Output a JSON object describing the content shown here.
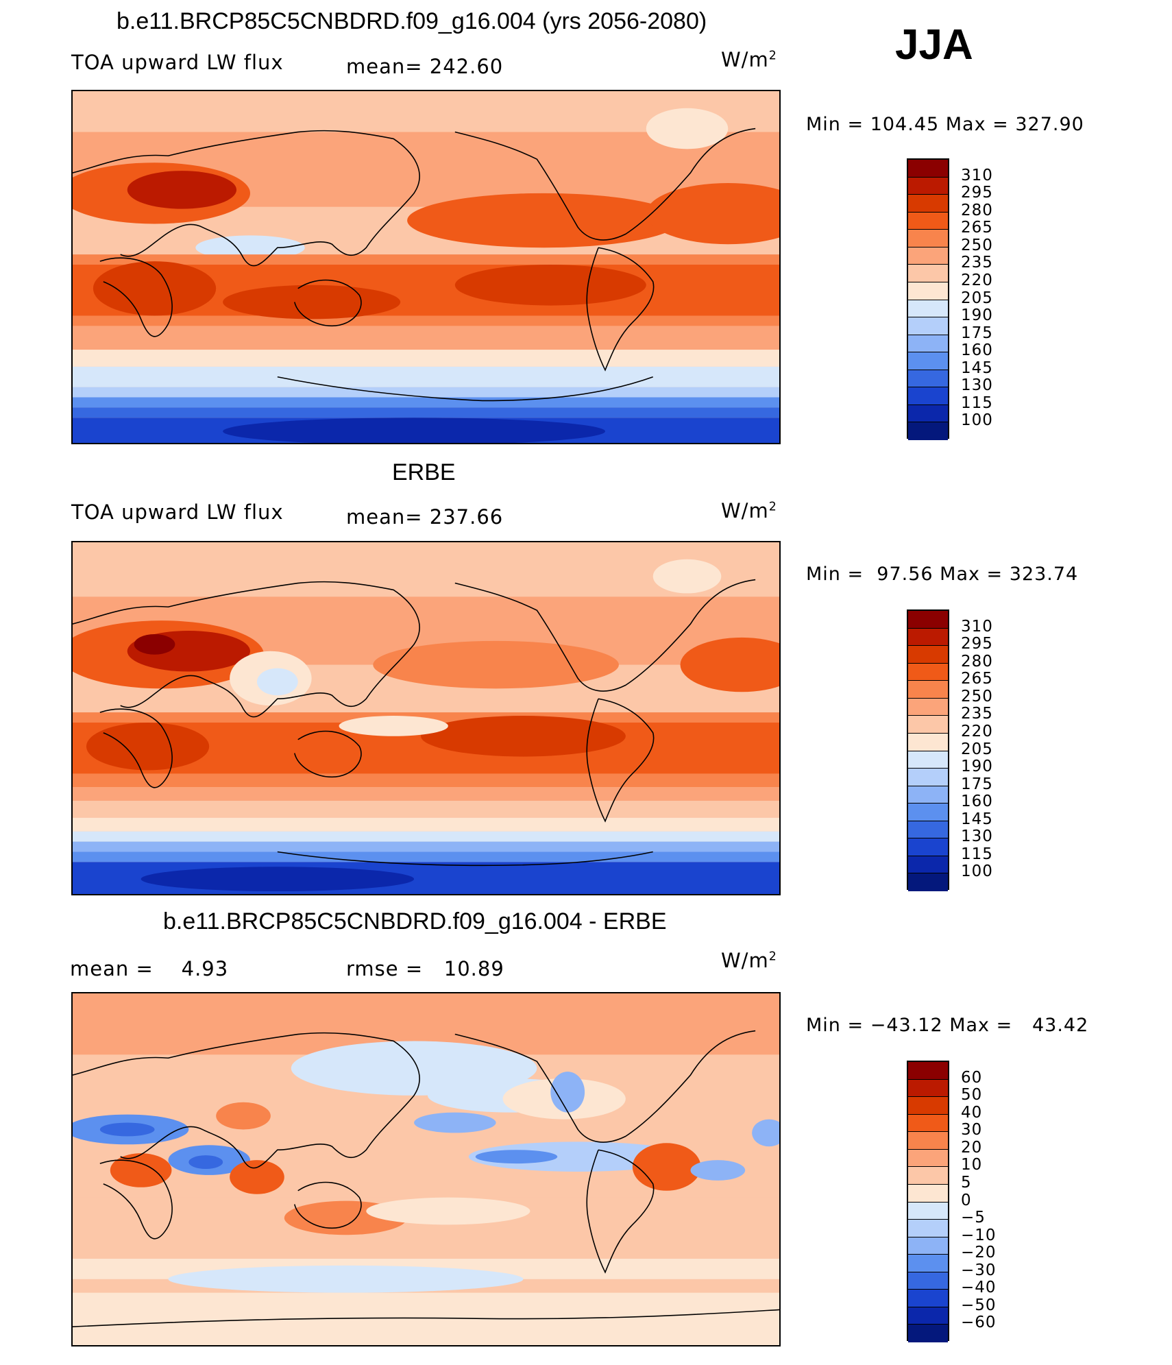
{
  "season": "JJA",
  "panels": [
    {
      "title": "b.e11.BRCP85C5CNBDRD.f09_g16.004 (yrs 2056-2080)",
      "left_label": "TOA upward LW flux",
      "center_label": "mean= 242.60",
      "units": "W/m",
      "units_sup": "2",
      "minmax": "Min = 104.45 Max = 327.90",
      "colorbar": {
        "labels": [
          "310",
          "295",
          "280",
          "265",
          "250",
          "235",
          "220",
          "205",
          "190",
          "175",
          "160",
          "145",
          "130",
          "115",
          "100"
        ],
        "colors": [
          "#8b0000",
          "#bb1a00",
          "#d83a00",
          "#f05a18",
          "#f8844c",
          "#fba47a",
          "#fcc7a8",
          "#fde6d2",
          "#d6e7fa",
          "#b4cffa",
          "#8db3f6",
          "#5c90ef",
          "#3668e0",
          "#1a44cf",
          "#0b27ab",
          "#04187c"
        ]
      }
    },
    {
      "title": "ERBE",
      "left_label": "TOA upward LW flux",
      "center_label": "mean= 237.66",
      "units": "W/m",
      "units_sup": "2",
      "minmax": "Min =  97.56 Max = 323.74",
      "colorbar": {
        "labels": [
          "310",
          "295",
          "280",
          "265",
          "250",
          "235",
          "220",
          "205",
          "190",
          "175",
          "160",
          "145",
          "130",
          "115",
          "100"
        ],
        "colors": [
          "#8b0000",
          "#bb1a00",
          "#d83a00",
          "#f05a18",
          "#f8844c",
          "#fba47a",
          "#fcc7a8",
          "#fde6d2",
          "#d6e7fa",
          "#b4cffa",
          "#8db3f6",
          "#5c90ef",
          "#3668e0",
          "#1a44cf",
          "#0b27ab",
          "#04187c"
        ]
      }
    },
    {
      "title": "b.e11.BRCP85C5CNBDRD.f09_g16.004 - ERBE",
      "left_label": "mean =    4.93",
      "center_label": "rmse =   10.89",
      "units": "W/m",
      "units_sup": "2",
      "minmax": "Min = −43.12 Max =   43.42",
      "colorbar": {
        "labels": [
          "60",
          "50",
          "40",
          "30",
          "20",
          "10",
          "5",
          "0",
          "−5",
          "−10",
          "−20",
          "−30",
          "−40",
          "−50",
          "−60"
        ],
        "colors": [
          "#8b0000",
          "#bb1a00",
          "#d83a00",
          "#f05a18",
          "#f8844c",
          "#fba47a",
          "#fcc7a8",
          "#fde6d2",
          "#d6e7fa",
          "#b4cffa",
          "#8db3f6",
          "#5c90ef",
          "#3668e0",
          "#1a44cf",
          "#0b27ab",
          "#04187c"
        ]
      }
    }
  ]
}
